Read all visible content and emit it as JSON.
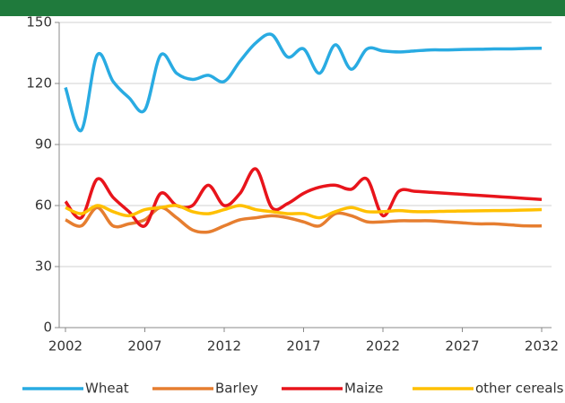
{
  "chart_data": {
    "type": "line",
    "x": [
      2002,
      2003,
      2004,
      2005,
      2006,
      2007,
      2008,
      2009,
      2010,
      2011,
      2012,
      2013,
      2014,
      2015,
      2016,
      2017,
      2018,
      2019,
      2020,
      2021,
      2022,
      2023,
      2024,
      2025,
      2026,
      2027,
      2028,
      2029,
      2030,
      2031,
      2032
    ],
    "series": [
      {
        "name": "Wheat",
        "color": "#29abe2",
        "values": [
          118,
          97,
          134,
          121,
          113,
          107,
          134,
          125,
          122,
          124,
          121,
          131,
          140,
          144,
          133,
          137,
          125,
          139,
          127,
          137,
          136,
          135.5,
          136,
          136.5,
          136.5,
          136.7,
          136.8,
          137,
          137,
          137.2,
          137.3
        ]
      },
      {
        "name": "Barley",
        "color": "#e67e30",
        "values": [
          53,
          50,
          59,
          50,
          51,
          53,
          59,
          54,
          48,
          47,
          50,
          53,
          54,
          55,
          54,
          52,
          50,
          56,
          55,
          52,
          52,
          52.5,
          52.5,
          52.5,
          52,
          51.5,
          51,
          51,
          50.5,
          50,
          50
        ]
      },
      {
        "name": "Maize",
        "color": "#e8141b",
        "values": [
          62,
          54,
          73,
          64,
          57,
          50,
          66,
          60,
          60,
          70,
          60,
          66,
          78,
          59,
          61,
          66,
          69,
          70,
          68,
          73,
          55,
          67,
          67,
          66.5,
          66,
          65.5,
          65,
          64.5,
          64,
          63.5,
          63
        ]
      },
      {
        "name": "other cereals",
        "color": "#ffc000",
        "values": [
          59,
          56,
          60,
          57,
          55,
          58,
          59,
          60,
          57,
          56,
          58,
          60,
          58,
          57,
          56,
          56,
          54,
          57,
          59,
          57,
          57,
          57.5,
          57,
          57,
          57.2,
          57.3,
          57.4,
          57.5,
          57.6,
          57.8,
          58
        ]
      }
    ],
    "xlim": [
      2002,
      2032
    ],
    "xticks": [
      2002,
      2007,
      2012,
      2017,
      2022,
      2027,
      2032
    ],
    "ylim": [
      0,
      150
    ],
    "yticks": [
      0,
      30,
      60,
      90,
      120,
      150
    ],
    "grid": true
  }
}
